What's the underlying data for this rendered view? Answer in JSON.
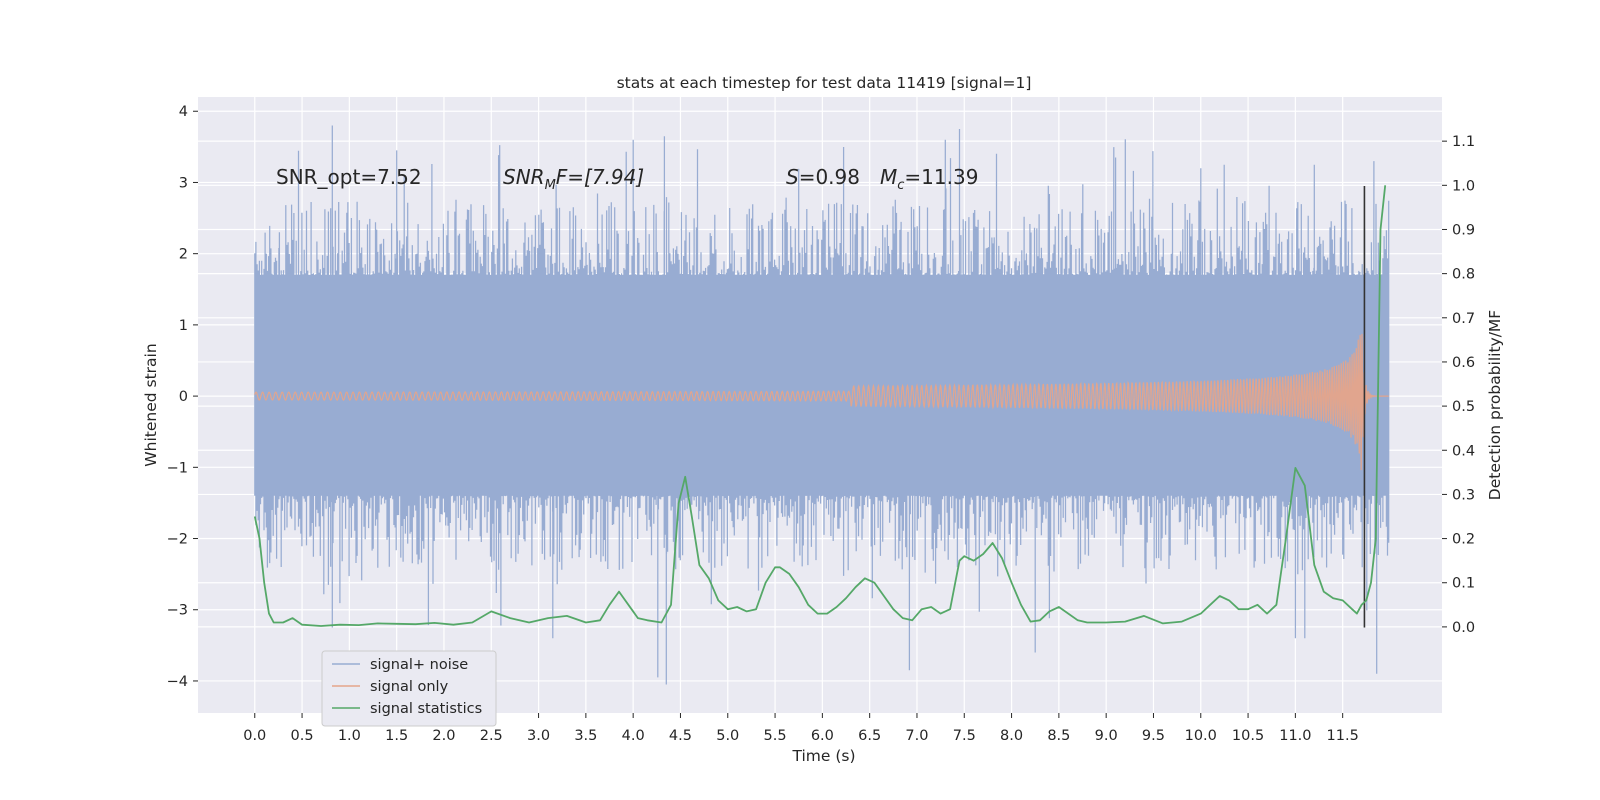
{
  "chart_data": {
    "type": "line",
    "title": "stats at each timestep for test data 11419 [signal=1]",
    "xlabel": "Time (s)",
    "ylabel": "Whitened strain",
    "y2label": "Detection probability/MF",
    "xlim": [
      -0.6,
      12.55
    ],
    "ylim": [
      -4.45,
      4.2
    ],
    "y2lim": [
      -0.195,
      1.2
    ],
    "x_ticks": [
      "0.0",
      "0.5",
      "1.0",
      "1.5",
      "2.0",
      "2.5",
      "3.0",
      "3.5",
      "4.0",
      "4.5",
      "5.0",
      "5.5",
      "6.0",
      "6.5",
      "7.0",
      "7.5",
      "8.0",
      "8.5",
      "9.0",
      "9.5",
      "10.0",
      "10.5",
      "11.0",
      "11.5"
    ],
    "y_ticks": [
      "−4",
      "−3",
      "−2",
      "−1",
      "0",
      "1",
      "2",
      "3",
      "4"
    ],
    "y2_ticks": [
      "0.0",
      "0.1",
      "0.2",
      "0.3",
      "0.4",
      "0.5",
      "0.6",
      "0.7",
      "0.8",
      "0.9",
      "1.0",
      "1.1"
    ],
    "grid": true,
    "legend_position": "lower-left",
    "colors": {
      "background": "#eaeaf2",
      "grid": "#ffffff",
      "noise": "#98acd2",
      "signal": "#e5a48a",
      "stats": "#55a868",
      "marker": "#333333"
    },
    "annotations": {
      "snr_opt": "SNR_opt=7.52",
      "snr_mf_name": "SNR",
      "snr_mf_sub": "M",
      "snr_mf_rest": "F=[7.94]",
      "s_name": "S",
      "s_value": "=0.98",
      "mc_name": "M",
      "mc_sub": "c",
      "mc_value": "=11.39"
    },
    "series": [
      {
        "name": "signal+ noise",
        "axis": "left",
        "x_range": [
          0.0,
          11.99
        ],
        "envelope_upper": 1.75,
        "envelope_lower": -1.45,
        "peaks_up": [
          {
            "x": 0.82,
            "y": 3.8
          },
          {
            "x": 0.26,
            "y": 2.3
          },
          {
            "x": 1.5,
            "y": 3.45
          },
          {
            "x": 1.58,
            "y": 3.1
          },
          {
            "x": 4.0,
            "y": 3.6
          },
          {
            "x": 4.33,
            "y": 3.65
          },
          {
            "x": 7.3,
            "y": 3.6
          },
          {
            "x": 7.45,
            "y": 3.75
          },
          {
            "x": 9.1,
            "y": 3.35
          },
          {
            "x": 10.0,
            "y": 3.2
          },
          {
            "x": 11.2,
            "y": 3.25
          },
          {
            "x": 11.83,
            "y": 3.3
          }
        ],
        "peaks_down": [
          {
            "x": 4.26,
            "y": -3.95
          },
          {
            "x": 4.35,
            "y": -4.05
          },
          {
            "x": 3.15,
            "y": -3.4
          },
          {
            "x": 8.25,
            "y": -3.6
          },
          {
            "x": 6.92,
            "y": -3.85
          },
          {
            "x": 11.0,
            "y": -3.4
          },
          {
            "x": 11.1,
            "y": -3.4
          },
          {
            "x": 11.86,
            "y": -3.9
          },
          {
            "x": 0.82,
            "y": -3.25
          }
        ]
      },
      {
        "name": "signal only",
        "axis": "left",
        "chirp_start": 7.3,
        "merger_time": 11.7,
        "peak_amplitude": 1.1,
        "base_amplitude": 0.02
      },
      {
        "name": "signal statistics",
        "axis": "right",
        "x": [
          0.0,
          0.05,
          0.1,
          0.15,
          0.2,
          0.3,
          0.4,
          0.5,
          0.7,
          0.9,
          1.1,
          1.3,
          1.5,
          1.7,
          1.9,
          2.1,
          2.3,
          2.5,
          2.7,
          2.9,
          3.1,
          3.3,
          3.5,
          3.65,
          3.75,
          3.85,
          3.95,
          4.05,
          4.15,
          4.3,
          4.4,
          4.48,
          4.55,
          4.62,
          4.7,
          4.8,
          4.9,
          5.0,
          5.1,
          5.2,
          5.3,
          5.4,
          5.5,
          5.55,
          5.65,
          5.75,
          5.85,
          5.95,
          6.05,
          6.15,
          6.25,
          6.35,
          6.45,
          6.55,
          6.65,
          6.75,
          6.85,
          6.95,
          7.05,
          7.15,
          7.25,
          7.35,
          7.45,
          7.5,
          7.6,
          7.7,
          7.8,
          7.9,
          8.0,
          8.1,
          8.2,
          8.3,
          8.4,
          8.5,
          8.6,
          8.7,
          8.8,
          9.0,
          9.2,
          9.4,
          9.6,
          9.8,
          10.0,
          10.1,
          10.2,
          10.3,
          10.4,
          10.5,
          10.6,
          10.7,
          10.8,
          10.9,
          11.0,
          11.1,
          11.2,
          11.3,
          11.4,
          11.5,
          11.6,
          11.65,
          11.7,
          11.75,
          11.8,
          11.85,
          11.9,
          11.95
        ],
        "y": [
          0.25,
          0.2,
          0.1,
          0.03,
          0.01,
          0.01,
          0.02,
          0.005,
          0.002,
          0.005,
          0.004,
          0.008,
          0.007,
          0.006,
          0.009,
          0.005,
          0.01,
          0.035,
          0.02,
          0.01,
          0.02,
          0.025,
          0.01,
          0.015,
          0.05,
          0.08,
          0.05,
          0.02,
          0.015,
          0.01,
          0.05,
          0.28,
          0.34,
          0.25,
          0.14,
          0.11,
          0.06,
          0.04,
          0.045,
          0.035,
          0.04,
          0.1,
          0.135,
          0.135,
          0.12,
          0.09,
          0.05,
          0.03,
          0.03,
          0.045,
          0.065,
          0.09,
          0.11,
          0.1,
          0.07,
          0.04,
          0.02,
          0.015,
          0.04,
          0.045,
          0.03,
          0.04,
          0.15,
          0.16,
          0.15,
          0.165,
          0.19,
          0.155,
          0.1,
          0.05,
          0.012,
          0.015,
          0.035,
          0.045,
          0.03,
          0.015,
          0.01,
          0.01,
          0.012,
          0.025,
          0.008,
          0.012,
          0.03,
          0.05,
          0.07,
          0.06,
          0.04,
          0.04,
          0.05,
          0.03,
          0.05,
          0.2,
          0.36,
          0.32,
          0.14,
          0.08,
          0.065,
          0.06,
          0.04,
          0.03,
          0.05,
          0.06,
          0.1,
          0.2,
          0.9,
          1.0
        ]
      }
    ],
    "vertical_marker": {
      "x": 11.73,
      "y_top": 2.95,
      "y_bottom": -3.25
    },
    "legend": [
      "signal+ noise",
      "signal only",
      "signal statistics"
    ]
  }
}
